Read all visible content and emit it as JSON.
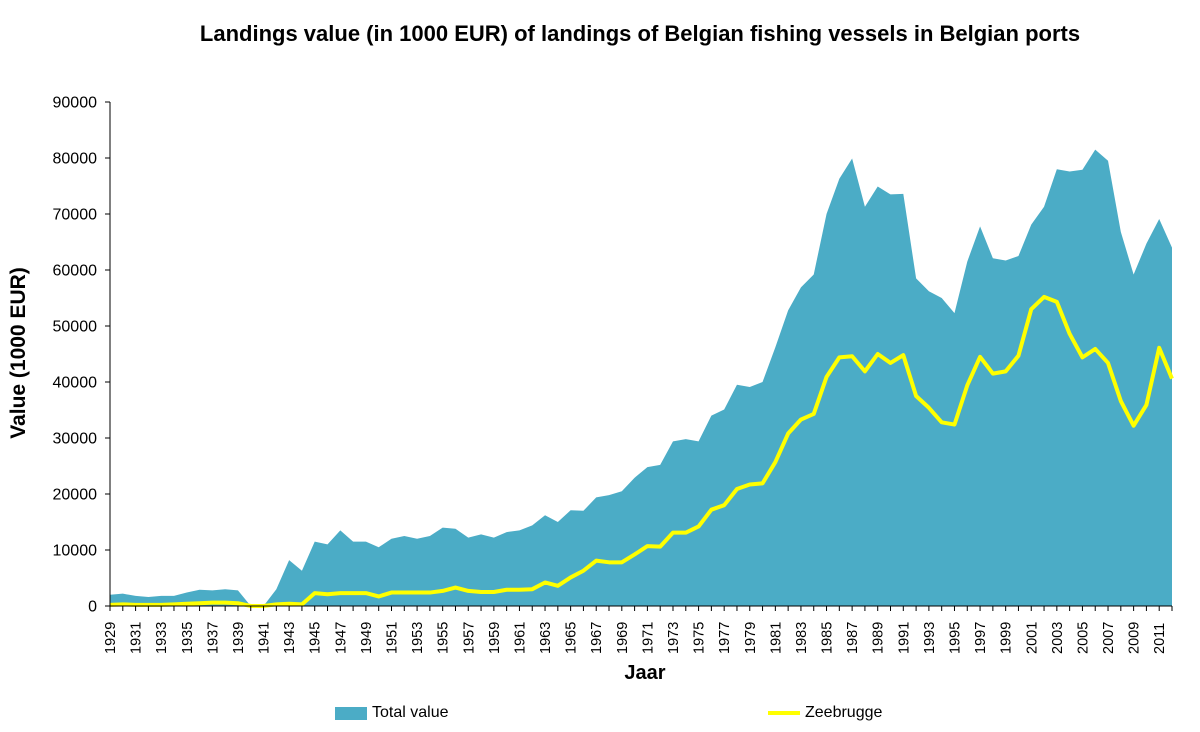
{
  "chart_data": {
    "type": "area",
    "title": "Landings value (in 1000 EUR) of landings of Belgian fishing vessels in Belgian ports",
    "xlabel": "Jaar",
    "ylabel": "Value  (1000 EUR)",
    "ylim": [
      0,
      90000
    ],
    "yticks": [
      "0",
      "10000",
      "20000",
      "30000",
      "40000",
      "50000",
      "60000",
      "70000",
      "80000",
      "90000"
    ],
    "xlim": [
      1929,
      2012
    ],
    "xtick_labels": [
      "1929",
      "1931",
      "1933",
      "1935",
      "1937",
      "1939",
      "1941",
      "1943",
      "1945",
      "1947",
      "1949",
      "1951",
      "1953",
      "1955",
      "1957",
      "1959",
      "1961",
      "1963",
      "1965",
      "1967",
      "1969",
      "1971",
      "1973",
      "1975",
      "1977",
      "1979",
      "1981",
      "1983",
      "1985",
      "1987",
      "1989",
      "1991",
      "1993",
      "1995",
      "1997",
      "1999",
      "2001",
      "2003",
      "2005",
      "2007",
      "2009",
      "2011"
    ],
    "grid": false,
    "legend_position": "bottom",
    "colors": {
      "total": "#4bacc6",
      "zeebrugge": "#ffff00"
    },
    "series": [
      {
        "name": "Total value",
        "style": "area",
        "x": [
          1929,
          1930,
          1931,
          1932,
          1933,
          1934,
          1935,
          1936,
          1937,
          1938,
          1939,
          1940,
          1941,
          1942,
          1943,
          1944,
          1945,
          1946,
          1947,
          1948,
          1949,
          1950,
          1951,
          1952,
          1953,
          1954,
          1955,
          1956,
          1957,
          1958,
          1959,
          1960,
          1961,
          1962,
          1963,
          1964,
          1965,
          1966,
          1967,
          1968,
          1969,
          1970,
          1971,
          1972,
          1973,
          1974,
          1975,
          1976,
          1977,
          1978,
          1979,
          1980,
          1981,
          1982,
          1983,
          1984,
          1985,
          1986,
          1987,
          1988,
          1989,
          1990,
          1991,
          1992,
          1993,
          1994,
          1995,
          1996,
          1997,
          1998,
          1999,
          2000,
          2001,
          2002,
          2003,
          2004,
          2005,
          2006,
          2007,
          2008,
          2009,
          2010,
          2011,
          2012
        ],
        "values": [
          2000,
          2200,
          1800,
          1600,
          1800,
          1800,
          2400,
          2900,
          2800,
          3000,
          2800,
          0,
          0,
          3000,
          8200,
          6300,
          11500,
          11000,
          13500,
          11500,
          11500,
          10500,
          12000,
          12500,
          12000,
          12500,
          14000,
          13800,
          12200,
          12800,
          12200,
          13200,
          13500,
          14400,
          16200,
          15000,
          17100,
          17000,
          19400,
          19800,
          20500,
          22900,
          24800,
          25200,
          29400,
          29800,
          29400,
          34000,
          35100,
          39500,
          39100,
          40000,
          46200,
          52800,
          56900,
          59200,
          70000,
          76300,
          79900,
          71300,
          74900,
          73500,
          73600,
          58500,
          56200,
          55000,
          52300,
          61500,
          67800,
          62100,
          61700,
          62500,
          68100,
          71300,
          78000,
          77600,
          77900,
          81500,
          79500,
          66800,
          59200,
          64700,
          69100,
          64000
        ]
      },
      {
        "name": "Zeebrugge",
        "style": "line",
        "x": [
          1929,
          1930,
          1931,
          1932,
          1933,
          1934,
          1935,
          1936,
          1937,
          1938,
          1939,
          1940,
          1941,
          1942,
          1943,
          1944,
          1945,
          1946,
          1947,
          1948,
          1949,
          1950,
          1951,
          1952,
          1953,
          1954,
          1955,
          1956,
          1957,
          1958,
          1959,
          1960,
          1961,
          1962,
          1963,
          1964,
          1965,
          1966,
          1967,
          1968,
          1969,
          1970,
          1971,
          1972,
          1973,
          1974,
          1975,
          1976,
          1977,
          1978,
          1979,
          1980,
          1981,
          1982,
          1983,
          1984,
          1985,
          1986,
          1987,
          1988,
          1989,
          1990,
          1991,
          1992,
          1993,
          1994,
          1995,
          1996,
          1997,
          1998,
          1999,
          2000,
          2001,
          2002,
          2003,
          2004,
          2005,
          2006,
          2007,
          2008,
          2009,
          2010,
          2011,
          2012
        ],
        "values": [
          200,
          300,
          200,
          200,
          200,
          300,
          400,
          500,
          600,
          600,
          500,
          0,
          0,
          300,
          400,
          300,
          2300,
          2100,
          2300,
          2300,
          2300,
          1700,
          2400,
          2400,
          2400,
          2400,
          2700,
          3300,
          2700,
          2500,
          2500,
          2900,
          2900,
          3000,
          4200,
          3600,
          5100,
          6300,
          8100,
          7800,
          7800,
          9200,
          10700,
          10600,
          13100,
          13100,
          14200,
          17200,
          18000,
          20900,
          21700,
          21900,
          25700,
          30800,
          33300,
          34300,
          40900,
          44400,
          44600,
          41900,
          45000,
          43400,
          44800,
          37500,
          35400,
          32800,
          32400,
          39400,
          44500,
          41500,
          41900,
          44700,
          53000,
          55200,
          54300,
          48600,
          44400,
          45900,
          43400,
          36600,
          32200,
          35900,
          46100,
          40600
        ]
      }
    ]
  }
}
